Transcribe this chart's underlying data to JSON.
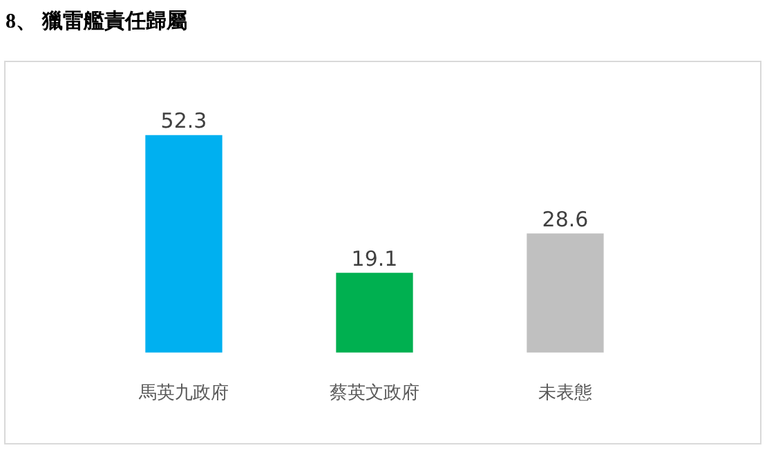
{
  "chart_data": {
    "type": "bar",
    "title": "8、 獵雷艦責任歸屬",
    "categories": [
      "馬英九政府",
      "蔡英文政府",
      "未表態"
    ],
    "values": [
      52.3,
      19.1,
      28.6
    ],
    "colors": [
      "#00b0f0",
      "#00b050",
      "#c0c0c0"
    ],
    "data_labels": true,
    "grid": false,
    "legend": false
  }
}
